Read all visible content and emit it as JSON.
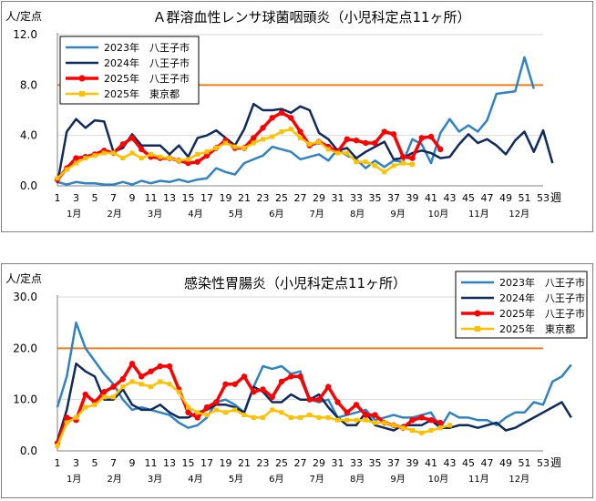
{
  "chart_data": [
    {
      "type": "line",
      "title": "Ａ群溶血性レンサ球菌咽頭炎（小児科定点11ヶ所）",
      "ylabel": "人/定点",
      "xlabel": "週",
      "ylim": [
        0,
        12
      ],
      "yticks": [
        "0.0",
        "4.0",
        "8.0",
        "12.0"
      ],
      "threshold": 8.0,
      "threshold_color": "#f07c19",
      "week_ticks": [
        "1",
        "3",
        "5",
        "7",
        "9",
        "11",
        "13",
        "15",
        "17",
        "19",
        "21",
        "23",
        "25",
        "27",
        "29",
        "31",
        "33",
        "35",
        "37",
        "39",
        "41",
        "43",
        "45",
        "47",
        "49",
        "51",
        "53"
      ],
      "months": [
        "1月",
        "2月",
        "3月",
        "4月",
        "5月",
        "6月",
        "7月",
        "8月",
        "9月",
        "10月",
        "11月",
        "12月"
      ],
      "legend_position": "top-left",
      "series": [
        {
          "name": "2023年　八王子市",
          "color": "#2e83c6",
          "marker": "none",
          "values": [
            0.3,
            0.1,
            0.3,
            0.2,
            0.2,
            0.1,
            0.1,
            0.3,
            0.1,
            0.4,
            0.2,
            0.4,
            0.3,
            0.5,
            0.3,
            0.5,
            0.6,
            1.4,
            1.1,
            0.9,
            1.8,
            2.1,
            2.4,
            3.1,
            2.9,
            2.7,
            2.1,
            2.3,
            2.5,
            2.0,
            2.9,
            2.4,
            2.1,
            1.4,
            2.0,
            1.5,
            2.0,
            1.9,
            3.7,
            3.3,
            1.8,
            4.2,
            5.3,
            4.3,
            4.8,
            4.3,
            5.2,
            7.3,
            7.4,
            7.5,
            10.2,
            7.7
          ]
        },
        {
          "name": "2024年　八王子市",
          "color": "#0f2a5f",
          "marker": "none",
          "values": [
            0.2,
            4.3,
            5.3,
            4.6,
            5.2,
            5.1,
            2.7,
            3.0,
            4.1,
            3.2,
            3.2,
            3.2,
            2.5,
            3.2,
            2.3,
            3.8,
            4.0,
            4.4,
            3.8,
            3.2,
            4.5,
            6.5,
            6.0,
            6.0,
            6.1,
            5.8,
            6.3,
            6.0,
            4.2,
            3.7,
            2.8,
            3.0,
            2.2,
            2.7,
            3.1,
            3.5,
            2.1,
            2.2,
            2.6,
            2.8,
            2.6,
            2.2,
            2.3,
            3.3,
            4.1,
            3.4,
            3.7,
            3.2,
            2.5,
            3.6,
            4.3,
            2.7,
            4.4,
            1.8
          ]
        },
        {
          "name": "2025年　八王子市",
          "color": "#ff0000",
          "marker": "circle",
          "values": [
            0.5,
            1.4,
            2.2,
            2.3,
            2.5,
            2.8,
            2.6,
            3.3,
            3.8,
            2.9,
            2.3,
            2.2,
            2.2,
            2.0,
            1.8,
            1.9,
            2.4,
            3.0,
            3.6,
            3.0,
            3.0,
            3.8,
            4.6,
            5.4,
            5.8,
            5.4,
            4.3,
            3.2,
            3.5,
            3.1,
            2.7,
            3.7,
            3.6,
            3.4,
            3.4,
            4.3,
            4.1,
            2.3,
            2.2,
            3.8,
            3.9,
            2.9
          ]
        },
        {
          "name": "2025年　東京都",
          "color": "#ffc000",
          "marker": "square",
          "values": [
            0.6,
            1.3,
            1.8,
            2.2,
            2.4,
            2.6,
            2.6,
            2.2,
            2.6,
            2.2,
            2.5,
            2.3,
            2.2,
            2.0,
            2.1,
            2.5,
            2.7,
            3.0,
            3.4,
            3.1,
            3.0,
            3.4,
            3.7,
            3.9,
            4.3,
            4.5,
            3.8,
            3.3,
            3.5,
            2.9,
            2.6,
            2.6,
            1.9,
            1.9,
            1.6,
            1.1,
            1.6,
            1.8,
            1.7
          ]
        }
      ]
    },
    {
      "type": "line",
      "title": "感染性胃腸炎（小児科定点11ヶ所）",
      "ylabel": "人/定点",
      "xlabel": "週",
      "ylim": [
        0,
        30
      ],
      "yticks": [
        "0.0",
        "10.0",
        "20.0",
        "30.0"
      ],
      "threshold": 20.0,
      "threshold_color": "#f07c19",
      "week_ticks": [
        "1",
        "3",
        "5",
        "7",
        "9",
        "11",
        "13",
        "15",
        "17",
        "19",
        "21",
        "23",
        "25",
        "27",
        "29",
        "31",
        "33",
        "35",
        "37",
        "39",
        "41",
        "43",
        "45",
        "47",
        "49",
        "51",
        "53"
      ],
      "months": [
        "1月",
        "2月",
        "3月",
        "4月",
        "5月",
        "6月",
        "7月",
        "8月",
        "9月",
        "10月",
        "11月",
        "12月"
      ],
      "legend_position": "top-right",
      "series": [
        {
          "name": "2023年　八王子市",
          "color": "#2e83c6",
          "marker": "none",
          "values": [
            8.5,
            14.5,
            25.0,
            20.0,
            17.5,
            15.0,
            13.0,
            10.0,
            8.0,
            8.5,
            8.0,
            7.5,
            7.0,
            5.5,
            4.5,
            5.0,
            6.5,
            9.5,
            10.0,
            9.0,
            7.5,
            12.5,
            16.5,
            16.0,
            16.5,
            15.0,
            15.5,
            10.0,
            9.5,
            10.0,
            6.5,
            7.0,
            7.5,
            8.0,
            6.0,
            6.5,
            7.0,
            6.5,
            6.5,
            7.0,
            7.5,
            4.5,
            7.5,
            6.5,
            6.5,
            6.0,
            6.0,
            5.0,
            6.5,
            7.5,
            7.5,
            9.5,
            9.0,
            13.5,
            14.5,
            16.8
          ]
        },
        {
          "name": "2024年　八王子市",
          "color": "#0f2a5f",
          "marker": "none",
          "values": [
            2.0,
            8.0,
            17.0,
            15.5,
            14.5,
            10.0,
            10.0,
            12.0,
            9.0,
            8.0,
            8.0,
            9.0,
            7.5,
            6.5,
            6.5,
            7.5,
            8.0,
            9.0,
            9.0,
            8.5,
            7.5,
            12.5,
            11.5,
            9.5,
            9.5,
            11.0,
            10.0,
            10.0,
            11.0,
            8.5,
            6.5,
            5.0,
            5.0,
            7.5,
            5.0,
            4.5,
            4.0,
            5.0,
            5.0,
            5.0,
            6.0,
            4.5,
            4.5,
            5.0,
            5.0,
            4.5,
            5.0,
            5.5,
            4.0,
            4.5,
            5.5,
            6.5,
            7.5,
            8.5,
            9.5,
            6.5
          ]
        },
        {
          "name": "2025年　八王子市",
          "color": "#ff0000",
          "marker": "circle",
          "values": [
            1.5,
            6.5,
            6.0,
            11.0,
            9.5,
            11.5,
            12.5,
            14.0,
            17.0,
            14.5,
            15.5,
            16.5,
            16.5,
            12.0,
            7.5,
            6.5,
            8.5,
            9.5,
            13.0,
            13.0,
            14.5,
            11.5,
            12.0,
            10.5,
            13.5,
            14.5,
            14.5,
            10.0,
            10.0,
            12.5,
            9.5,
            7.5,
            9.0,
            7.0,
            7.0,
            5.5,
            5.0,
            4.5,
            6.0,
            6.5,
            6.0,
            5.5
          ]
        },
        {
          "name": "2025年　東京都",
          "color": "#ffc000",
          "marker": "square",
          "values": [
            1.0,
            5.5,
            6.5,
            8.5,
            9.0,
            10.5,
            10.5,
            12.5,
            13.5,
            13.0,
            12.5,
            13.5,
            13.0,
            11.5,
            8.5,
            7.5,
            7.0,
            8.0,
            7.5,
            8.0,
            7.0,
            6.5,
            6.5,
            8.0,
            7.5,
            6.5,
            6.5,
            7.0,
            6.5,
            6.5,
            6.0,
            6.0,
            6.0,
            6.0,
            5.5,
            5.5,
            5.0,
            4.5,
            4.0,
            3.5,
            4.0,
            4.5,
            5.0
          ]
        }
      ]
    }
  ]
}
